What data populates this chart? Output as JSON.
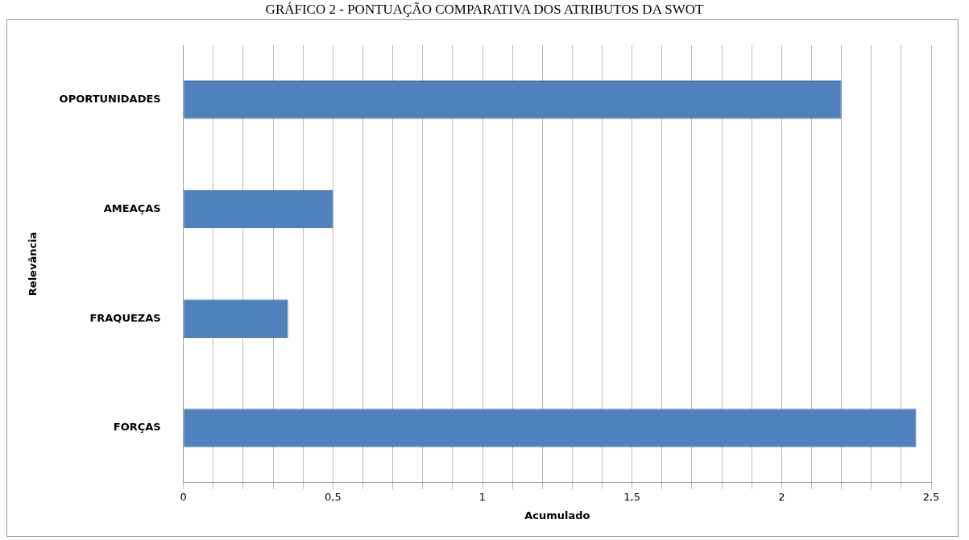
{
  "chart_data": {
    "type": "bar",
    "orientation": "horizontal",
    "title": "GRÁFICO 2 - PONTUAÇÃO COMPARATIVA DOS ATRIBUTOS DA SWOT",
    "xlabel": "Acumulado",
    "ylabel": "Relevância",
    "categories": [
      "OPORTUNIDADES",
      "AMEAÇAS",
      "FRAQUEZAS",
      "FORÇAS"
    ],
    "values": [
      2.2,
      0.5,
      0.35,
      2.45
    ],
    "color": "#4f81bd",
    "xlim": [
      0,
      2.5
    ],
    "xticks": [
      0,
      {
        "value": 0.1,
        "label": null
      },
      {
        "value": 0.2,
        "label": null
      },
      {
        "value": 0.3,
        "label": null
      },
      {
        "value": 0.4,
        "label": null
      },
      {
        "value": 0.5,
        "label": "0,5"
      },
      {
        "value": 0.6,
        "label": null
      },
      {
        "value": 0.7,
        "label": null
      },
      {
        "value": 0.8,
        "label": null
      },
      {
        "value": 0.9,
        "label": null
      },
      1,
      {
        "value": 1.1,
        "label": null
      },
      {
        "value": 1.2,
        "label": null
      },
      {
        "value": 1.3,
        "label": null
      },
      {
        "value": 1.4,
        "label": null
      },
      {
        "value": 1.5,
        "label": "1,5"
      },
      {
        "value": 1.6,
        "label": null
      },
      {
        "value": 1.7,
        "label": null
      },
      {
        "value": 1.8,
        "label": null
      },
      {
        "value": 1.9,
        "label": null
      },
      2,
      {
        "value": 2.1,
        "label": null
      },
      {
        "value": 2.2,
        "label": null
      },
      {
        "value": 2.3,
        "label": null
      },
      {
        "value": 2.4,
        "label": null
      },
      {
        "value": 2.5,
        "label": "2,5"
      }
    ],
    "grid": "x"
  }
}
